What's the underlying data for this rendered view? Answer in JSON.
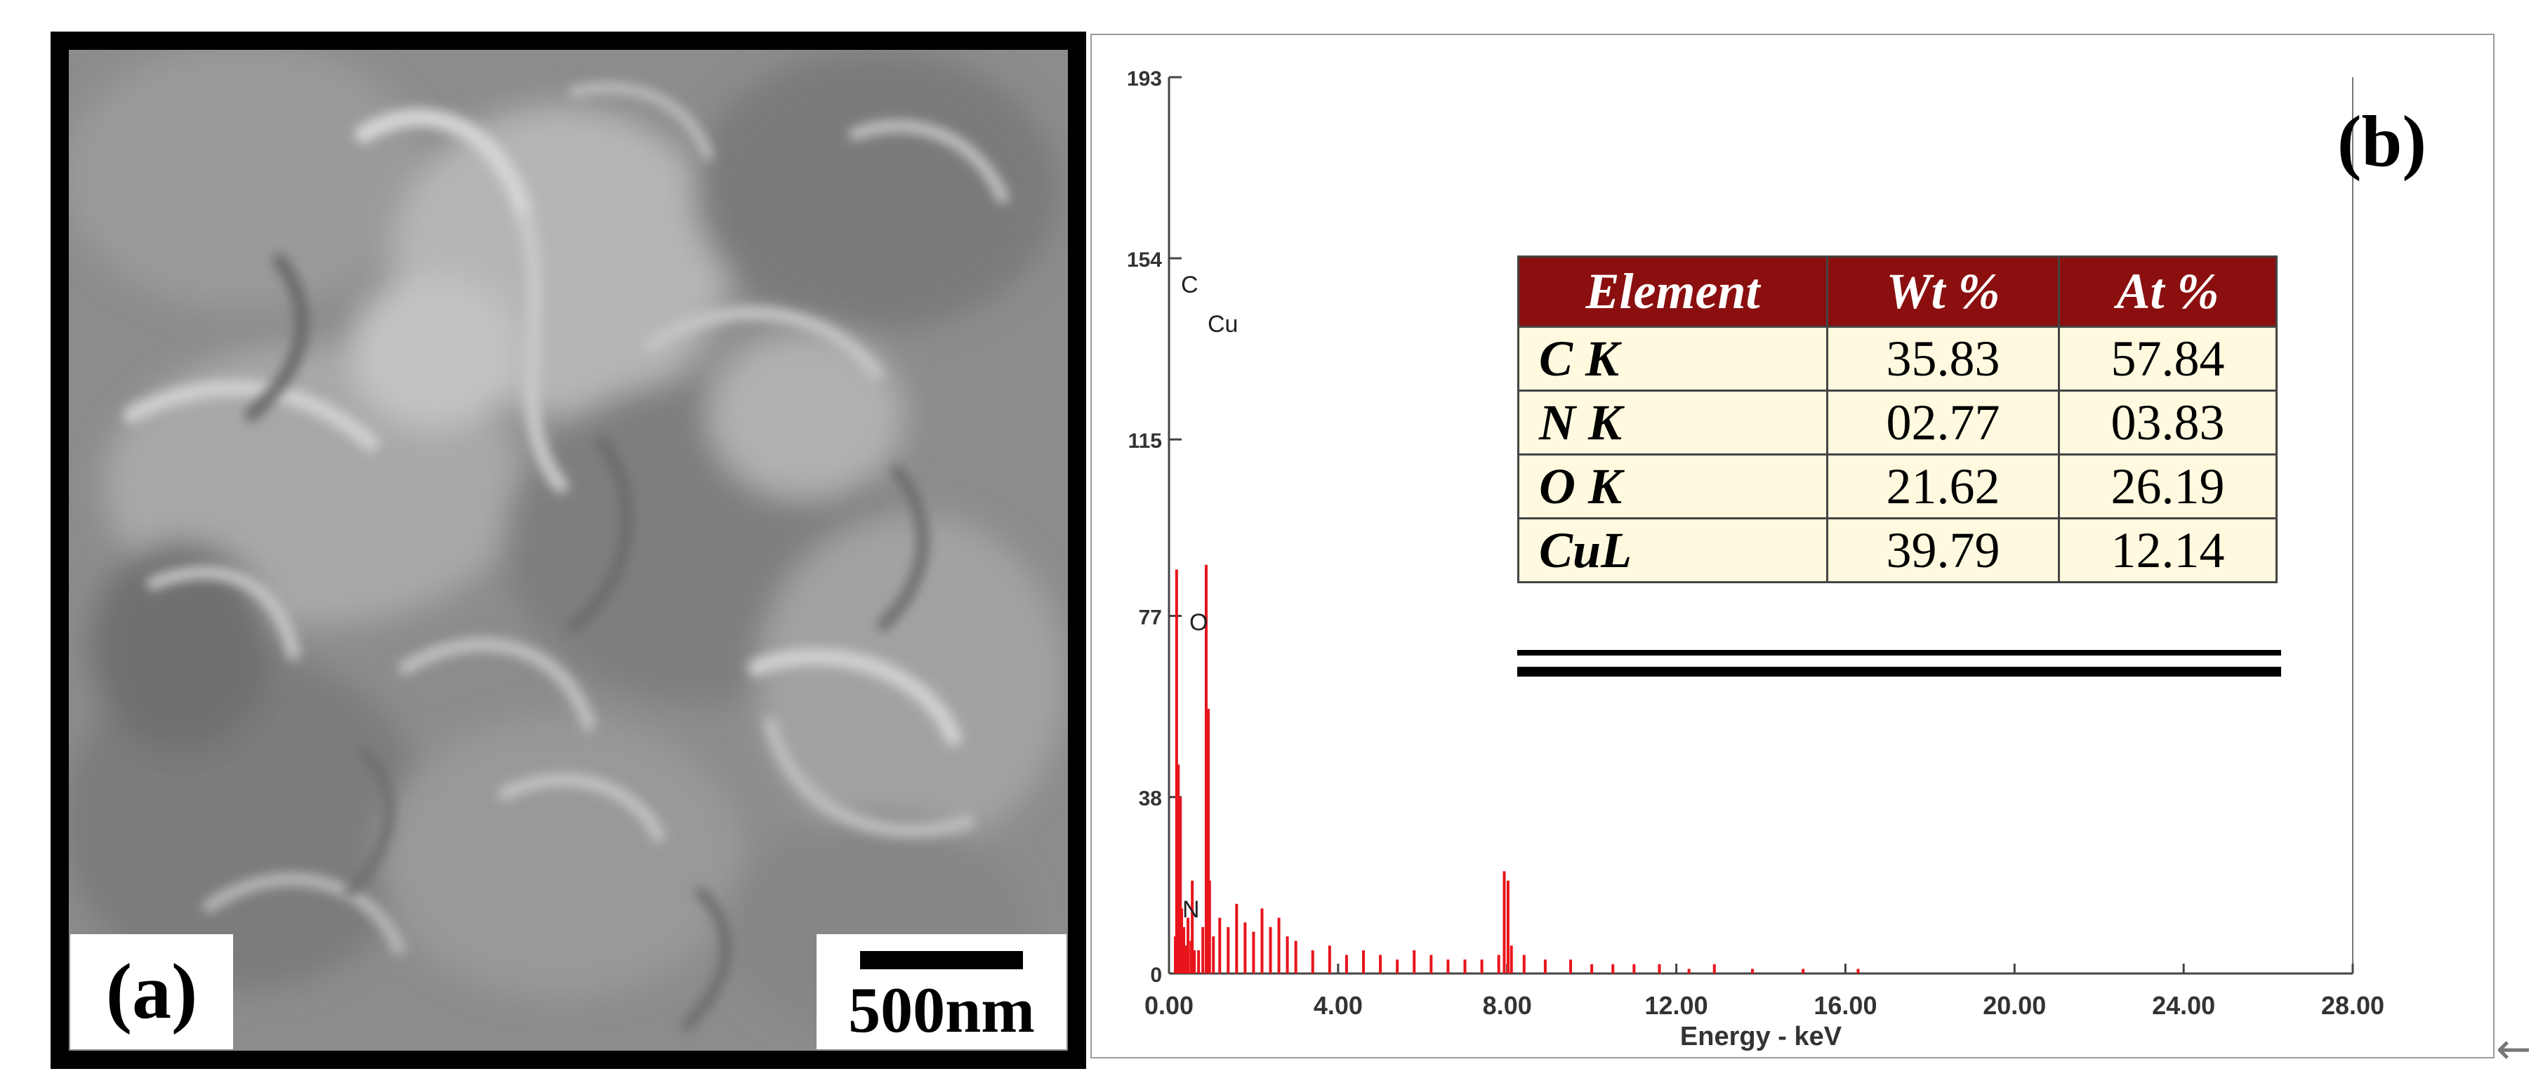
{
  "panel_a": {
    "label": "(a)",
    "scale_bar_label": "500nm"
  },
  "panel_b": {
    "label": "(b)",
    "peak_labels": [
      "C",
      "Cu",
      "O",
      "N"
    ],
    "table": {
      "headers": [
        "Element",
        "Wt %",
        "At %"
      ],
      "rows": [
        [
          "C K",
          "35.83",
          "57.84"
        ],
        [
          "N K",
          "02.77",
          "03.83"
        ],
        [
          "O K",
          "21.62",
          "26.19"
        ],
        [
          "CuL",
          "39.79",
          "12.14"
        ]
      ]
    }
  },
  "chart_data": {
    "type": "bar",
    "xlabel": "Energy - keV",
    "ylabel": "",
    "xlim": [
      0,
      28
    ],
    "ylim": [
      0,
      193
    ],
    "x_ticks": [
      "0.00",
      "4.00",
      "8.00",
      "12.00",
      "16.00",
      "20.00",
      "24.00",
      "28.00"
    ],
    "y_ticks": [
      "0",
      "38",
      "77",
      "115",
      "154",
      "193"
    ],
    "line_color": "#e8141b",
    "series": [
      {
        "x": [
          0.15,
          0.18,
          0.22,
          0.27,
          0.3,
          0.35,
          0.4,
          0.45,
          0.52,
          0.55,
          0.6,
          0.7,
          0.8,
          0.88,
          0.93,
          0.96,
          1.05,
          1.2,
          1.4,
          1.6,
          1.8,
          2.0,
          2.2,
          2.4,
          2.6,
          2.8,
          3.0,
          3.4,
          3.8,
          4.2,
          4.6,
          5.0,
          5.4,
          5.8,
          6.2,
          6.6,
          7.0,
          7.4,
          7.8,
          7.93,
          8.02,
          8.1,
          8.4,
          8.9,
          9.5,
          10.0,
          10.5,
          11.0,
          11.6,
          12.3,
          12.9,
          13.8,
          15.0,
          16.3
        ],
        "y": [
          8,
          87,
          45,
          38,
          14,
          10,
          6,
          12,
          7,
          20,
          5,
          5,
          10,
          88,
          57,
          20,
          8,
          12,
          10,
          15,
          11,
          9,
          14,
          10,
          12,
          8,
          7,
          5,
          6,
          4,
          5,
          4,
          3,
          5,
          4,
          3,
          3,
          3,
          4,
          22,
          20,
          6,
          4,
          3,
          3,
          2,
          2,
          2,
          2,
          1,
          2,
          1,
          1,
          1
        ]
      }
    ]
  }
}
